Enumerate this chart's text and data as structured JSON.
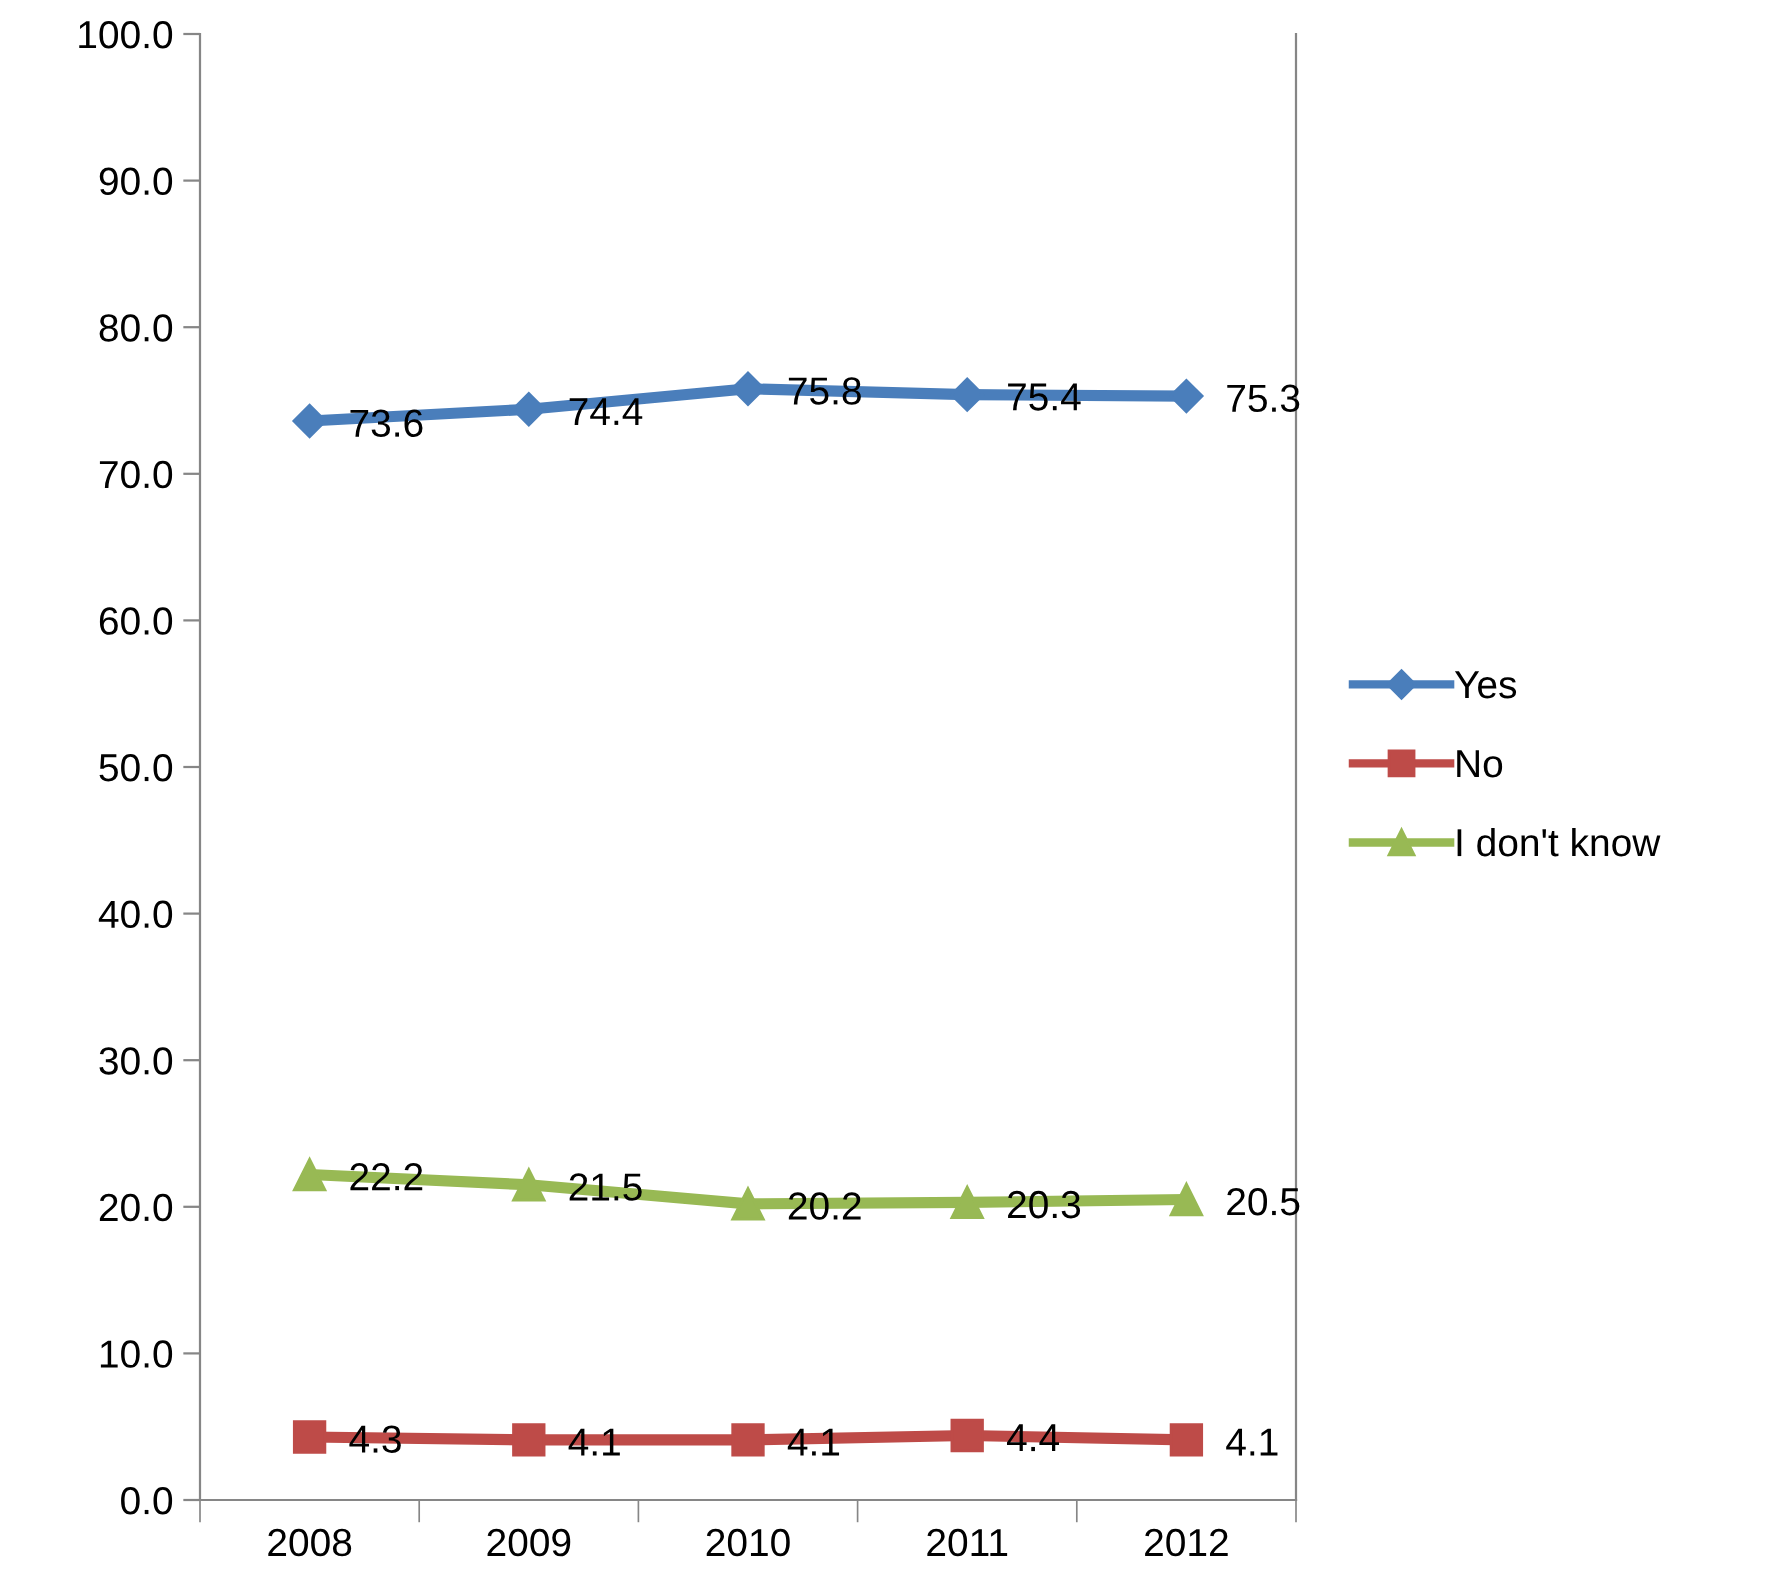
{
  "chart_data": {
    "type": "line",
    "categories": [
      "2008",
      "2009",
      "2010",
      "2011",
      "2012"
    ],
    "series": [
      {
        "name": "Yes",
        "color": "#4a7ebb",
        "marker": "diamond",
        "values": [
          73.6,
          74.4,
          75.8,
          75.4,
          75.3
        ]
      },
      {
        "name": "No",
        "color": "#be4b48",
        "marker": "square",
        "values": [
          4.3,
          4.1,
          4.1,
          4.4,
          4.1
        ]
      },
      {
        "name": "I don't know",
        "color": "#98b954",
        "marker": "triangle",
        "values": [
          22.2,
          21.5,
          20.2,
          20.3,
          20.5
        ]
      }
    ],
    "ylim": [
      0,
      100
    ],
    "yticks": [
      {
        "value": 0,
        "label": "0.0"
      },
      {
        "value": 10,
        "label": "10.0"
      },
      {
        "value": 20,
        "label": "20.0"
      },
      {
        "value": 30,
        "label": "30.0"
      },
      {
        "value": 40,
        "label": "40.0"
      },
      {
        "value": 50,
        "label": "50.0"
      },
      {
        "value": 60,
        "label": "60.0"
      },
      {
        "value": 70,
        "label": "70.0"
      },
      {
        "value": 80,
        "label": "80.0"
      },
      {
        "value": 90,
        "label": "90.0"
      },
      {
        "value": 100,
        "label": "100.0"
      }
    ],
    "data_labels": true,
    "grid": false,
    "legend": "right",
    "line_style": "solid"
  }
}
